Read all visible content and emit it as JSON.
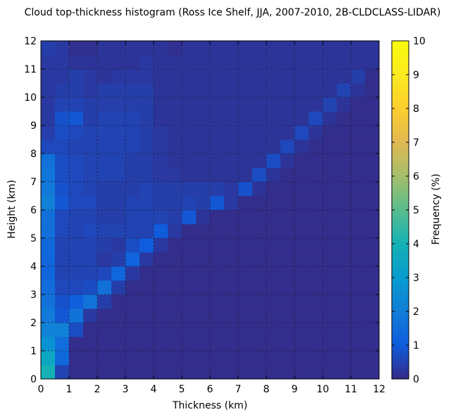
{
  "chart_data": {
    "type": "heatmap",
    "title": "Cloud top-thickness histogram (Ross Ice Shelf, JJA, 2007-2010, 2B-CLDCLASS-LIDAR)",
    "xlabel": "Thickness (km)",
    "ylabel": "Height (km)",
    "colorbar_label": "Frequency (%)",
    "xlim": [
      0,
      12
    ],
    "ylim": [
      0,
      12
    ],
    "clim": [
      0,
      10
    ],
    "x_ticks": [
      0,
      1,
      2,
      3,
      4,
      5,
      6,
      7,
      8,
      9,
      10,
      11,
      12
    ],
    "y_ticks": [
      0,
      1,
      2,
      3,
      4,
      5,
      6,
      7,
      8,
      9,
      10,
      11,
      12
    ],
    "colorbar_ticks": [
      0,
      1,
      2,
      3,
      4,
      5,
      6,
      7,
      8,
      9,
      10
    ],
    "colormap": "parula",
    "grid": true,
    "bin_size": 0.5,
    "values": [
      [
        4.0,
        0.5,
        0.05,
        0.05,
        0.05,
        0.05,
        0.05,
        0.05,
        0.05,
        0.05,
        0.05,
        0.05,
        0.05,
        0.05,
        0.05,
        0.05,
        0.05,
        0.05,
        0.05,
        0.05,
        0.05,
        0.05,
        0.05,
        0.05
      ],
      [
        3.5,
        1.4,
        0.05,
        0.05,
        0.05,
        0.05,
        0.05,
        0.05,
        0.05,
        0.05,
        0.05,
        0.05,
        0.05,
        0.05,
        0.05,
        0.05,
        0.05,
        0.05,
        0.05,
        0.05,
        0.05,
        0.05,
        0.05,
        0.05
      ],
      [
        2.7,
        1.5,
        0.05,
        0.05,
        0.05,
        0.05,
        0.05,
        0.05,
        0.05,
        0.05,
        0.05,
        0.05,
        0.05,
        0.05,
        0.05,
        0.05,
        0.05,
        0.05,
        0.05,
        0.05,
        0.05,
        0.05,
        0.05,
        0.05
      ],
      [
        2.2,
        2.1,
        0.7,
        0.05,
        0.05,
        0.05,
        0.05,
        0.05,
        0.05,
        0.05,
        0.05,
        0.05,
        0.05,
        0.05,
        0.05,
        0.05,
        0.05,
        0.05,
        0.05,
        0.05,
        0.05,
        0.05,
        0.05,
        0.05
      ],
      [
        1.9,
        0.9,
        1.7,
        0.3,
        0.05,
        0.05,
        0.05,
        0.05,
        0.05,
        0.05,
        0.05,
        0.05,
        0.05,
        0.05,
        0.05,
        0.05,
        0.05,
        0.05,
        0.05,
        0.05,
        0.05,
        0.05,
        0.05,
        0.05
      ],
      [
        1.7,
        0.8,
        1.1,
        1.7,
        0.4,
        0.05,
        0.05,
        0.05,
        0.05,
        0.05,
        0.05,
        0.05,
        0.05,
        0.05,
        0.05,
        0.05,
        0.05,
        0.05,
        0.05,
        0.05,
        0.05,
        0.05,
        0.05,
        0.05
      ],
      [
        1.5,
        0.6,
        0.6,
        0.7,
        1.6,
        0.4,
        0.05,
        0.05,
        0.05,
        0.05,
        0.05,
        0.05,
        0.05,
        0.05,
        0.05,
        0.05,
        0.05,
        0.05,
        0.05,
        0.05,
        0.05,
        0.05,
        0.05,
        0.05
      ],
      [
        1.3,
        0.5,
        0.5,
        0.5,
        0.6,
        1.3,
        0.3,
        0.05,
        0.05,
        0.05,
        0.05,
        0.05,
        0.05,
        0.05,
        0.05,
        0.05,
        0.05,
        0.05,
        0.05,
        0.05,
        0.05,
        0.05,
        0.05,
        0.05
      ],
      [
        1.3,
        0.5,
        0.5,
        0.5,
        0.3,
        0.4,
        1.2,
        0.3,
        0.05,
        0.05,
        0.05,
        0.05,
        0.05,
        0.05,
        0.05,
        0.05,
        0.05,
        0.05,
        0.05,
        0.05,
        0.05,
        0.05,
        0.05,
        0.05
      ],
      [
        1.4,
        0.5,
        0.5,
        0.5,
        0.4,
        0.3,
        0.7,
        1.0,
        0.3,
        0.05,
        0.05,
        0.05,
        0.05,
        0.05,
        0.05,
        0.05,
        0.05,
        0.05,
        0.05,
        0.05,
        0.05,
        0.05,
        0.05,
        0.05
      ],
      [
        1.6,
        0.6,
        0.5,
        0.6,
        0.5,
        0.5,
        0.5,
        0.5,
        1.0,
        0.3,
        0.05,
        0.05,
        0.05,
        0.05,
        0.05,
        0.05,
        0.05,
        0.05,
        0.05,
        0.05,
        0.05,
        0.05,
        0.05,
        0.05
      ],
      [
        1.6,
        0.6,
        0.5,
        0.5,
        0.4,
        0.4,
        0.5,
        0.5,
        0.5,
        0.4,
        0.9,
        0.2,
        0.05,
        0.05,
        0.05,
        0.05,
        0.05,
        0.05,
        0.05,
        0.05,
        0.05,
        0.05,
        0.05,
        0.05
      ],
      [
        2.1,
        0.9,
        0.6,
        0.6,
        0.4,
        0.4,
        0.5,
        0.5,
        0.4,
        0.4,
        0.5,
        0.4,
        0.9,
        0.3,
        0.05,
        0.05,
        0.05,
        0.05,
        0.05,
        0.05,
        0.05,
        0.05,
        0.05,
        0.05
      ],
      [
        1.9,
        0.8,
        0.6,
        0.5,
        0.4,
        0.4,
        0.4,
        0.5,
        0.4,
        0.4,
        0.4,
        0.4,
        0.4,
        0.3,
        0.8,
        0.2,
        0.05,
        0.05,
        0.05,
        0.05,
        0.05,
        0.05,
        0.05,
        0.05
      ],
      [
        1.8,
        0.7,
        0.6,
        0.5,
        0.5,
        0.5,
        0.4,
        0.4,
        0.3,
        0.3,
        0.2,
        0.2,
        0.2,
        0.2,
        0.2,
        0.7,
        0.2,
        0.05,
        0.05,
        0.05,
        0.05,
        0.05,
        0.05,
        0.05
      ],
      [
        1.6,
        0.7,
        0.6,
        0.5,
        0.5,
        0.5,
        0.4,
        0.4,
        0.3,
        0.2,
        0.2,
        0.2,
        0.2,
        0.2,
        0.2,
        0.2,
        0.7,
        0.2,
        0.05,
        0.05,
        0.05,
        0.05,
        0.05,
        0.05
      ],
      [
        0.6,
        0.6,
        0.5,
        0.5,
        0.5,
        0.5,
        0.5,
        0.4,
        0.3,
        0.2,
        0.2,
        0.2,
        0.2,
        0.2,
        0.2,
        0.2,
        0.2,
        0.6,
        0.2,
        0.05,
        0.05,
        0.05,
        0.05,
        0.05
      ],
      [
        0.4,
        0.7,
        0.6,
        0.5,
        0.5,
        0.5,
        0.5,
        0.4,
        0.3,
        0.2,
        0.2,
        0.2,
        0.2,
        0.2,
        0.2,
        0.2,
        0.2,
        0.2,
        0.6,
        0.2,
        0.05,
        0.05,
        0.05,
        0.05
      ],
      [
        0.3,
        0.8,
        0.9,
        0.4,
        0.5,
        0.5,
        0.5,
        0.4,
        0.2,
        0.2,
        0.2,
        0.2,
        0.2,
        0.2,
        0.2,
        0.2,
        0.2,
        0.2,
        0.2,
        0.6,
        0.2,
        0.05,
        0.05,
        0.05
      ],
      [
        0.3,
        0.5,
        0.5,
        0.4,
        0.4,
        0.4,
        0.4,
        0.4,
        0.2,
        0.2,
        0.2,
        0.2,
        0.2,
        0.2,
        0.2,
        0.2,
        0.2,
        0.2,
        0.2,
        0.2,
        0.5,
        0.2,
        0.05,
        0.05
      ],
      [
        0.3,
        0.4,
        0.4,
        0.3,
        0.4,
        0.4,
        0.4,
        0.4,
        0.2,
        0.2,
        0.2,
        0.2,
        0.2,
        0.2,
        0.2,
        0.2,
        0.2,
        0.2,
        0.2,
        0.2,
        0.2,
        0.5,
        0.2,
        0.05
      ],
      [
        0.3,
        0.3,
        0.4,
        0.3,
        0.2,
        0.3,
        0.3,
        0.3,
        0.2,
        0.2,
        0.2,
        0.2,
        0.2,
        0.2,
        0.2,
        0.2,
        0.2,
        0.2,
        0.2,
        0.2,
        0.2,
        0.2,
        0.4,
        0.05
      ],
      [
        0.3,
        0.3,
        0.2,
        0.2,
        0.2,
        0.2,
        0.2,
        0.3,
        0.2,
        0.2,
        0.2,
        0.2,
        0.2,
        0.2,
        0.2,
        0.2,
        0.2,
        0.2,
        0.2,
        0.2,
        0.2,
        0.2,
        0.2,
        0.2
      ],
      [
        0.4,
        0.3,
        0.1,
        0.1,
        0.2,
        0.2,
        0.2,
        0.2,
        0.2,
        0.1,
        0.2,
        0.2,
        0.2,
        0.2,
        0.2,
        0.2,
        0.2,
        0.2,
        0.2,
        0.2,
        0.2,
        0.2,
        0.2,
        0.2
      ]
    ]
  }
}
